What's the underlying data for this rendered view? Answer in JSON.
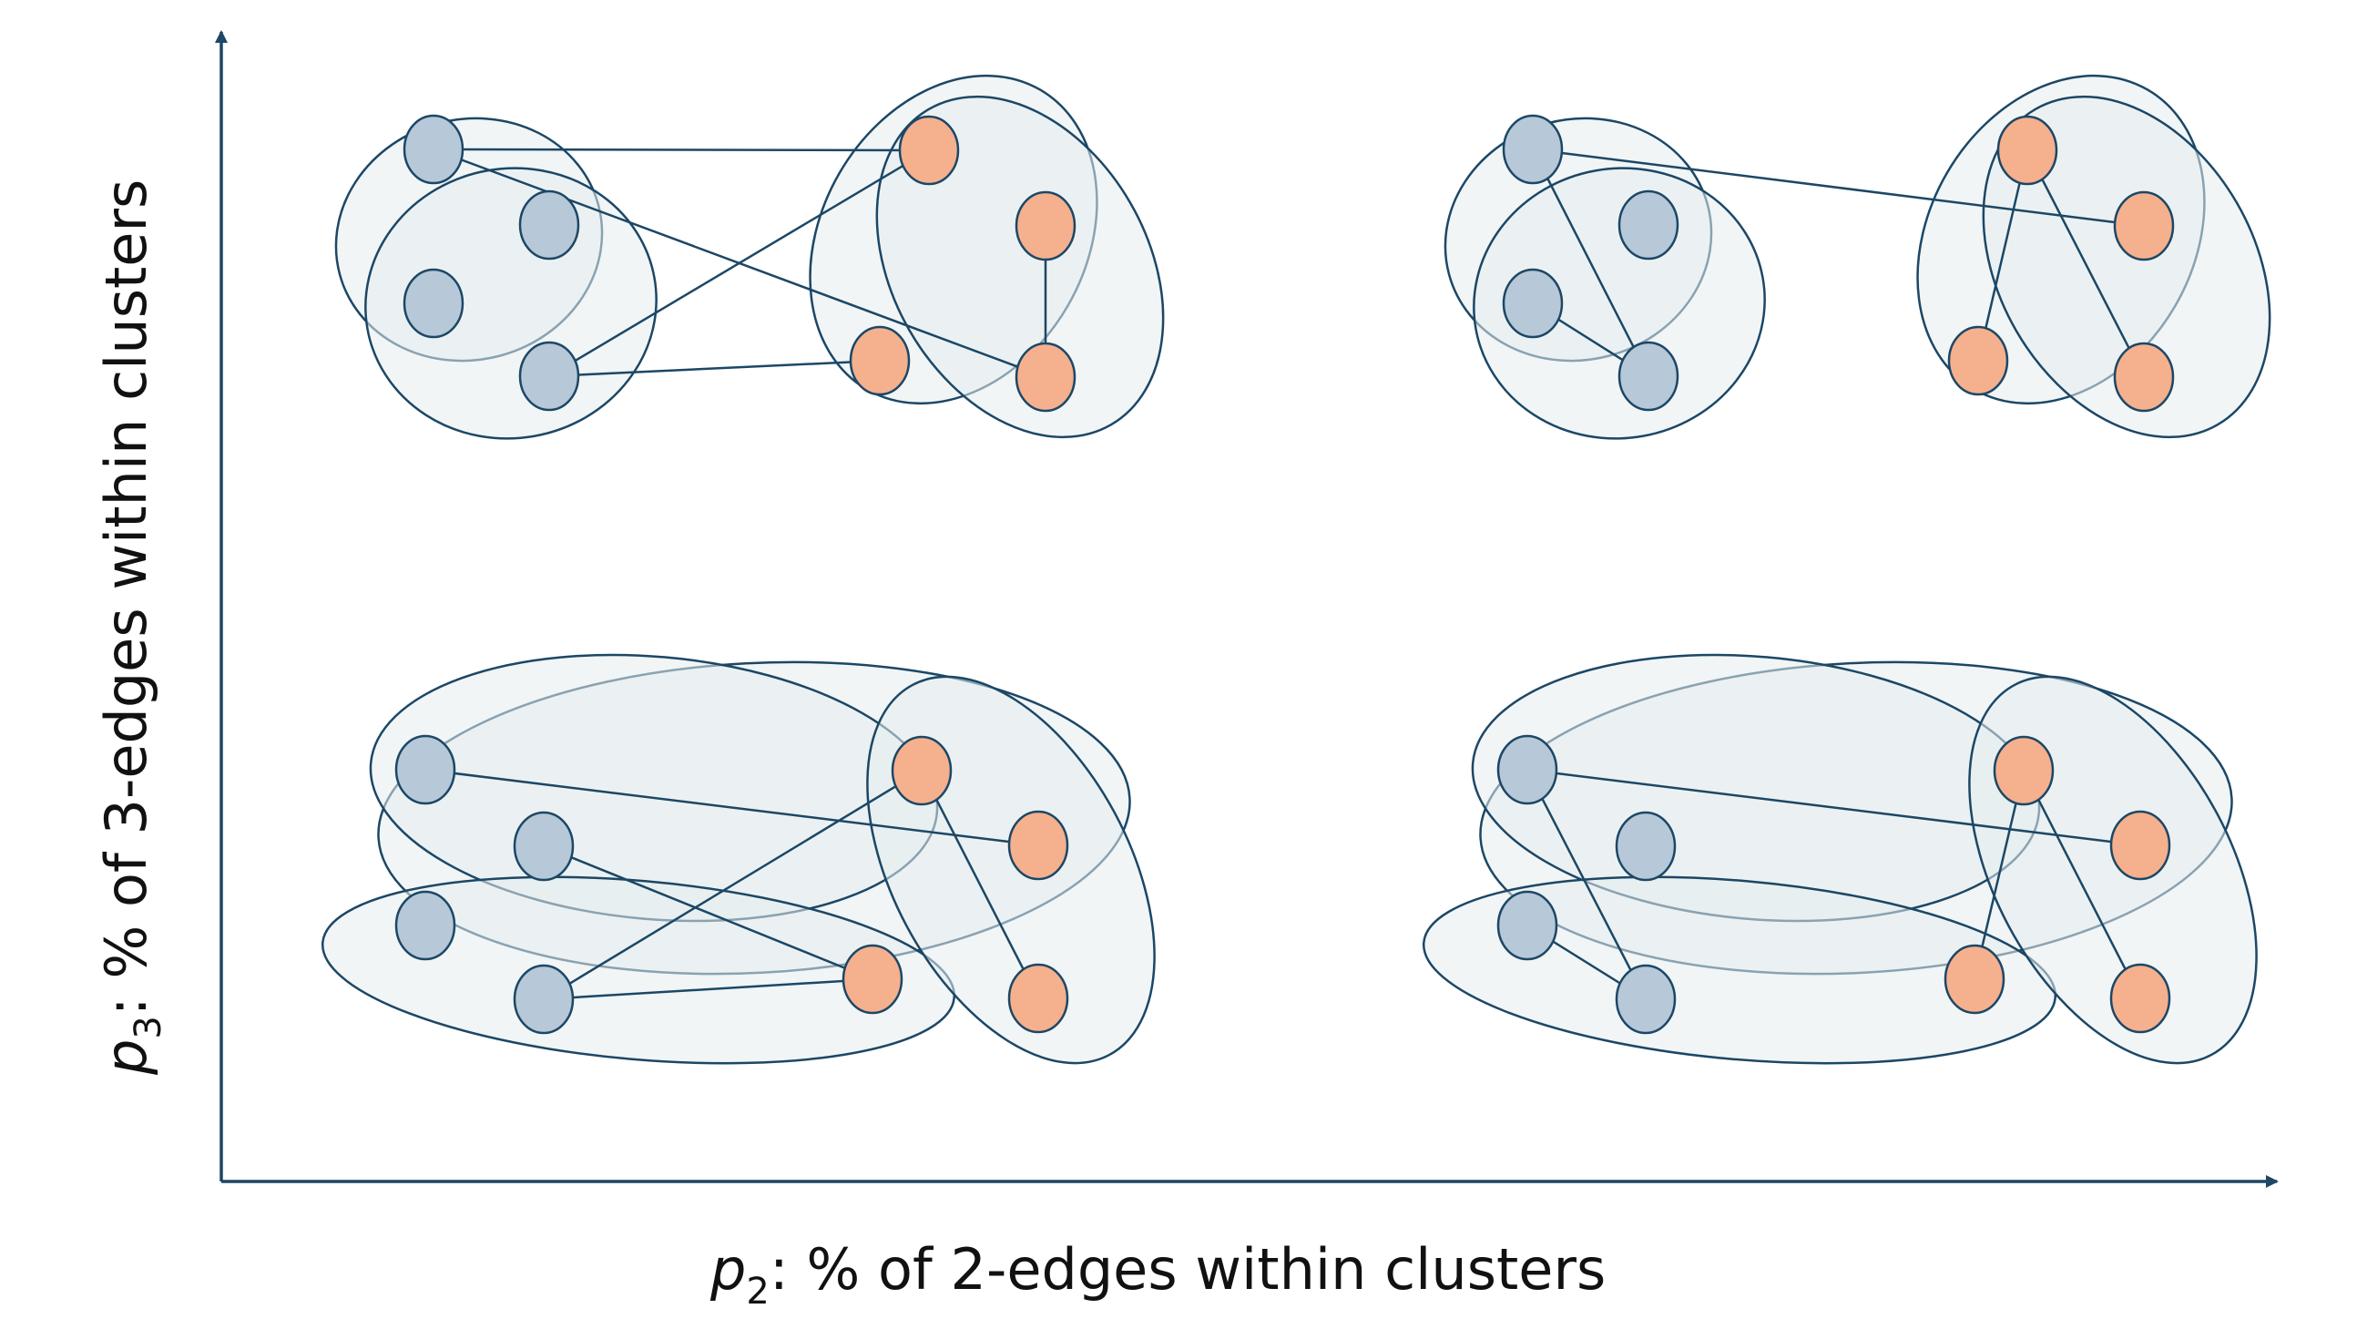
{
  "x_axis": {
    "var": "p",
    "sub": "2",
    "text": ": % of 2-edges within clusters"
  },
  "y_axis": {
    "var": "p",
    "sub": "3",
    "text": ": % of 3-edges within clusters"
  },
  "colors": {
    "axis": "#1c4766",
    "stroke": "#1c4766",
    "blue_node": "#b7c8d8",
    "orange_node": "#f5b08e",
    "ellipse_fill": "#e6ecef"
  },
  "panels": [
    {
      "name": "panel-top-left",
      "description_key": "low-p2-high-p3",
      "nodes": [
        "b1",
        "b2",
        "b3",
        "b4",
        "o1",
        "o2",
        "o3",
        "o4"
      ]
    },
    {
      "name": "panel-top-right",
      "description_key": "high-p2-high-p3",
      "nodes": [
        "b1",
        "b2",
        "b3",
        "b4",
        "o1",
        "o2",
        "o3",
        "o4"
      ]
    },
    {
      "name": "panel-bottom-left",
      "description_key": "low-p2-low-p3",
      "nodes": [
        "b1",
        "b2",
        "b3",
        "b4",
        "o1",
        "o2",
        "o3",
        "o4"
      ]
    },
    {
      "name": "panel-bottom-right",
      "description_key": "high-p2-low-p3",
      "nodes": [
        "b1",
        "b2",
        "b3",
        "b4",
        "o1",
        "o2",
        "o3",
        "o4"
      ]
    }
  ]
}
